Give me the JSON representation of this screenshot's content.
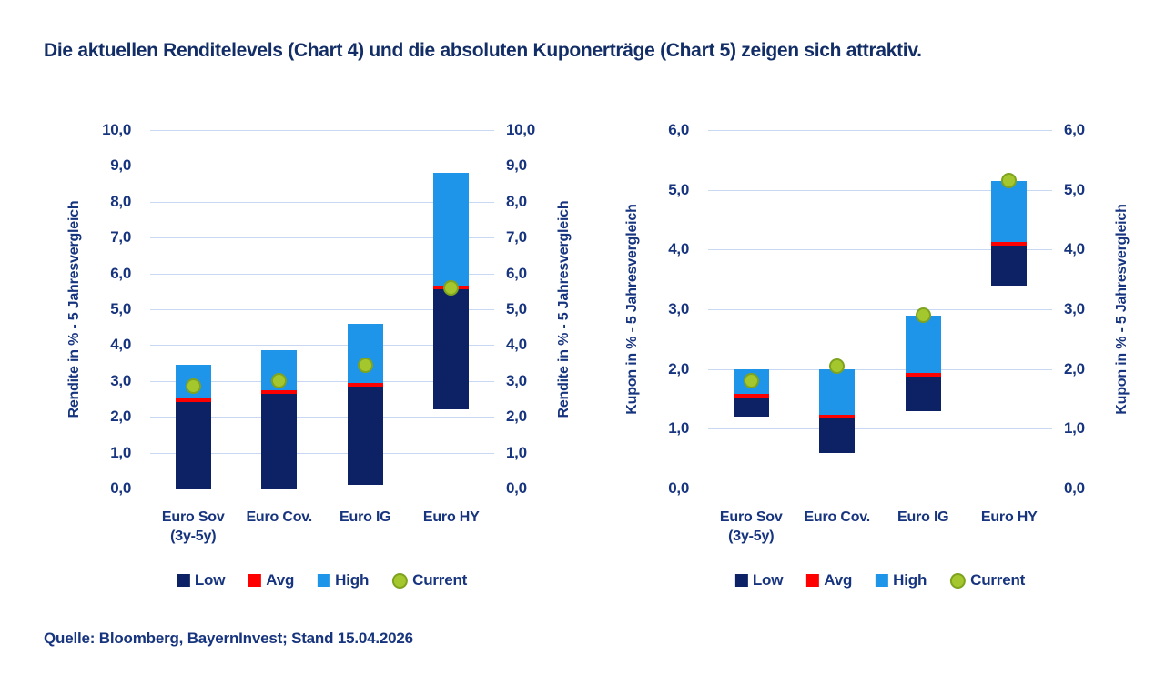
{
  "title": "Die aktuellen Renditelevels (Chart 4) und die absoluten Kuponerträge (Chart 5) zeigen sich attraktiv.",
  "source": "Quelle: Bloomberg, BayernInvest; Stand 15.04.2026",
  "colors": {
    "low": "#0d2264",
    "avg": "#fe0000",
    "high": "#1e95e8",
    "current_fill": "#a5c72e",
    "current_stroke": "#7ea31f",
    "grid": "#c9d8f2",
    "baseline": "#d8d8d8",
    "text": "#17347e",
    "title_text": "#132e66"
  },
  "legend": [
    {
      "key": "low",
      "label": "Low"
    },
    {
      "key": "avg",
      "label": "Avg"
    },
    {
      "key": "high",
      "label": "High"
    },
    {
      "key": "current",
      "label": "Current"
    }
  ],
  "chart_data": [
    {
      "name": "chart-4-renditelevels",
      "type": "bar",
      "subtype": "floating-range-bars-with-avg-line-and-current-dot",
      "title": "Chart 4",
      "ylabel_left": "Rendite in % - 5 Jahresvergleich",
      "ylabel_right": "Rendite in % - 5 Jahresvergleich",
      "ylim": [
        0.0,
        10.0
      ],
      "ytick_step": 1.0,
      "ytick_labels": [
        "0,0",
        "1,0",
        "2,0",
        "3,0",
        "4,0",
        "5,0",
        "6,0",
        "7,0",
        "8,0",
        "9,0",
        "10,0"
      ],
      "grid": true,
      "legend_position": "bottom",
      "categories": [
        "Euro Sov (3y-5y)",
        "Euro Cov.",
        "Euro IG",
        "Euro HY"
      ],
      "series": [
        {
          "name": "Low",
          "role": "range_bottom",
          "values": [
            0.0,
            0.0,
            0.1,
            2.2
          ]
        },
        {
          "name": "Avg",
          "role": "average_marker",
          "values": [
            2.45,
            2.7,
            2.9,
            5.6
          ]
        },
        {
          "name": "High",
          "role": "range_top",
          "values": [
            3.45,
            3.85,
            4.6,
            8.8
          ]
        },
        {
          "name": "Current",
          "role": "current_dot",
          "values": [
            2.85,
            3.0,
            3.45,
            5.6
          ]
        }
      ]
    },
    {
      "name": "chart-5-kuponertraege",
      "type": "bar",
      "subtype": "floating-range-bars-with-avg-line-and-current-dot",
      "title": "Chart 5",
      "ylabel_left": "Kupon in % - 5 Jahresvergleich",
      "ylabel_right": "Kupon in % - 5 Jahresvergleich",
      "ylim": [
        0.0,
        6.0
      ],
      "ytick_step": 1.0,
      "ytick_labels": [
        "0,0",
        "1,0",
        "2,0",
        "3,0",
        "4,0",
        "5,0",
        "6,0"
      ],
      "grid": true,
      "legend_position": "bottom",
      "categories": [
        "Euro Sov (3y-5y)",
        "Euro Cov.",
        "Euro IG",
        "Euro HY"
      ],
      "series": [
        {
          "name": "Low",
          "role": "range_bottom",
          "values": [
            1.2,
            0.6,
            1.3,
            3.4
          ]
        },
        {
          "name": "Avg",
          "role": "average_marker",
          "values": [
            1.55,
            1.2,
            1.9,
            4.1
          ]
        },
        {
          "name": "High",
          "role": "range_top",
          "values": [
            2.0,
            2.0,
            2.9,
            5.15
          ]
        },
        {
          "name": "Current",
          "role": "current_dot",
          "values": [
            1.8,
            2.05,
            2.9,
            5.15
          ]
        }
      ]
    }
  ]
}
